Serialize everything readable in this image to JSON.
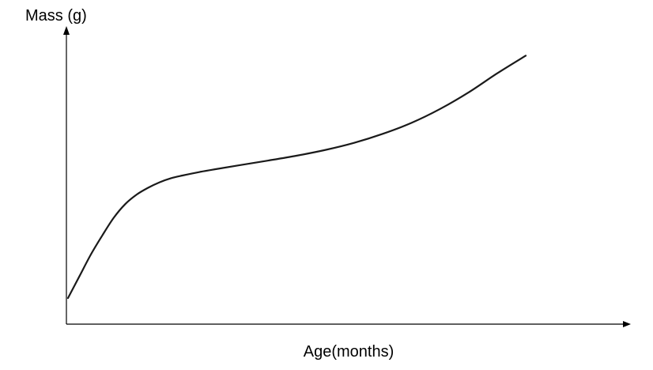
{
  "chart_data": {
    "type": "line",
    "title": "",
    "xlabel": "Age(months)",
    "ylabel": "Mass (g)",
    "x_ticks": [],
    "y_ticks": [],
    "grid": false,
    "legend": "none",
    "xlim": [
      0,
      100
    ],
    "ylim": [
      0,
      100
    ],
    "series": [
      {
        "color": "#1a1a1a",
        "x": [
          0,
          2,
          4,
          6,
          8,
          10,
          12,
          14,
          16,
          18,
          20,
          23,
          26,
          30,
          35,
          40,
          45,
          50,
          55,
          60,
          65,
          70,
          75,
          80
        ],
        "y": [
          10,
          18,
          26,
          33,
          39.5,
          44.5,
          48,
          50.5,
          52.5,
          54,
          55,
          56.3,
          57.4,
          58.8,
          60.5,
          62.3,
          64.4,
          67,
          70.3,
          74.3,
          79.4,
          85.5,
          92.5,
          99
        ]
      }
    ]
  }
}
